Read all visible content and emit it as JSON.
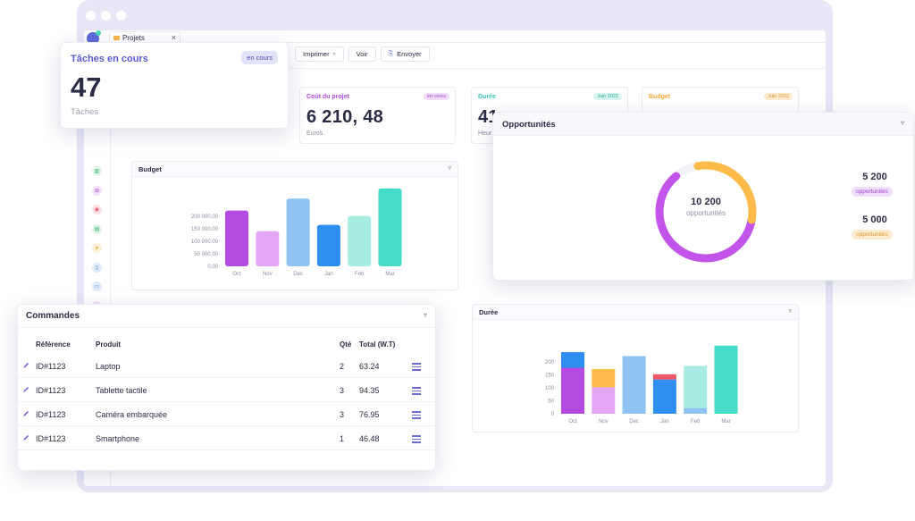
{
  "browser": {
    "tab": {
      "label": "Projets",
      "close": "×"
    }
  },
  "toolbar": {
    "print_label": "Imprimer",
    "print_caret": "▿",
    "view_label": "Voir",
    "send_label": "Envoyer",
    "send_icon": "⎘"
  },
  "tasks": {
    "title": "Tâches en cours",
    "badge": "en cours",
    "value": "47",
    "unit": "Tâches"
  },
  "kpis": [
    {
      "title": "Coût du projet",
      "badge": "en cours",
      "value": "6 210, 48",
      "unit": "Euros",
      "color": "#b44be0",
      "badge_bg": "#f1dcfb"
    },
    {
      "title": "Durée",
      "badge": "Juin 2022",
      "value": "41",
      "unit": "Heur",
      "color": "#3cc9b4",
      "badge_bg": "#d9f5ef"
    },
    {
      "title": "Budget",
      "badge": "Juin 2022",
      "value": "",
      "unit": "",
      "color": "#f6a83b",
      "badge_bg": "#fdebd0"
    }
  ],
  "budget_chart": {
    "title": "Budget",
    "chevron": "▿",
    "chart_data": {
      "type": "bar",
      "categories": [
        "Oct",
        "Nov",
        "Dec",
        "Jan",
        "Feb",
        "Mar"
      ],
      "values": [
        222000,
        140000,
        270000,
        165000,
        200000,
        310000
      ],
      "colors": [
        "#b44be0",
        "#e4a6f5",
        "#8fc3f3",
        "#2f8ff0",
        "#a6ece3",
        "#44dcc8"
      ],
      "yticks": [
        "0,00",
        "50 000,00",
        "100 000,00",
        "150 000,00",
        "200 000,00"
      ],
      "ytick_values": [
        0,
        50000,
        100000,
        150000,
        200000
      ],
      "ylim": [
        0,
        320000
      ]
    }
  },
  "duree_chart": {
    "title": "Durée",
    "chevron": "▿",
    "chart_data": {
      "type": "bar",
      "stacked": true,
      "categories": [
        "Oct",
        "Nov",
        "Dec",
        "Jan",
        "Feb",
        "Mar"
      ],
      "series": [
        {
          "values": [
            177,
            102,
            222,
            132,
            22,
            262
          ],
          "colors": [
            "#b44be0",
            "#e4a6f5",
            "#8fc3f3",
            "#2f8ff0",
            "#8fc3f3",
            "#44dcc8"
          ]
        },
        {
          "values": [
            60,
            70,
            0,
            20,
            162,
            0
          ],
          "colors": [
            "#2f8ff0",
            "#ffbb4a",
            "#8fc3f3",
            "#f0576a",
            "#a6ece3",
            "#44dcc8"
          ]
        }
      ],
      "yticks": [
        "0",
        "50",
        "100",
        "150",
        "200"
      ],
      "ytick_values": [
        0,
        50,
        100,
        150,
        200
      ],
      "ylim": [
        0,
        275
      ]
    }
  },
  "opportunities": {
    "title": "Opportunités",
    "chevron": "▿",
    "center_value": "10 200",
    "center_label": "opportunités",
    "chart_data": {
      "type": "pie",
      "values": [
        5200,
        5000
      ],
      "colors": [
        "#c254ea",
        "#ffbb4a"
      ]
    },
    "legend": [
      {
        "value": "5 200",
        "label": "opportunités",
        "bg": "#f1dcfb",
        "color": "#9b3fc9"
      },
      {
        "value": "5 000",
        "label": "opportunités",
        "bg": "#fdebd0",
        "color": "#d99530"
      }
    ]
  },
  "orders": {
    "title": "Commandes",
    "chevron": "▿",
    "columns": {
      "ref": "Référence",
      "product": "Produit",
      "qty": "Qté",
      "total": "Total (W.T)"
    },
    "rows": [
      {
        "ref": "ID#1123",
        "product": "Laptop",
        "qty": "2",
        "total": "63.24"
      },
      {
        "ref": "ID#1123",
        "product": "Tablette tactile",
        "qty": "3",
        "total": "94.35"
      },
      {
        "ref": "ID#1123",
        "product": "Caméra embarquée",
        "qty": "3",
        "total": "76.95"
      },
      {
        "ref": "ID#1123",
        "product": "Smartphone",
        "qty": "1",
        "total": "46.48"
      }
    ]
  },
  "sidebar_icons": [
    {
      "name": "chart-icon",
      "glyph": "▥",
      "bg": "#dff5e6",
      "color": "#3cb46a"
    },
    {
      "name": "cart-icon",
      "glyph": "⊞",
      "bg": "#f5e0fb",
      "color": "#b44be0"
    },
    {
      "name": "badge-icon",
      "glyph": "◉",
      "bg": "#fde2e4",
      "color": "#e65a6a"
    },
    {
      "name": "box-icon",
      "glyph": "▤",
      "bg": "#dff5e6",
      "color": "#3cb46a"
    },
    {
      "name": "coin-icon",
      "glyph": "●",
      "bg": "#fdf0d6",
      "color": "#f0a83b"
    },
    {
      "name": "document-icon",
      "glyph": "▯",
      "bg": "#dfeafc",
      "color": "#3c7ee8"
    },
    {
      "name": "monitor-icon",
      "glyph": "▭",
      "bg": "#dfeafc",
      "color": "#3c7ee8"
    },
    {
      "name": "cube-icon",
      "glyph": "◈",
      "bg": "#f5e0fb",
      "color": "#b44be0"
    },
    {
      "name": "settings-icon",
      "glyph": "✿",
      "bg": "#fde2e4",
      "color": "#e65a6a"
    }
  ]
}
